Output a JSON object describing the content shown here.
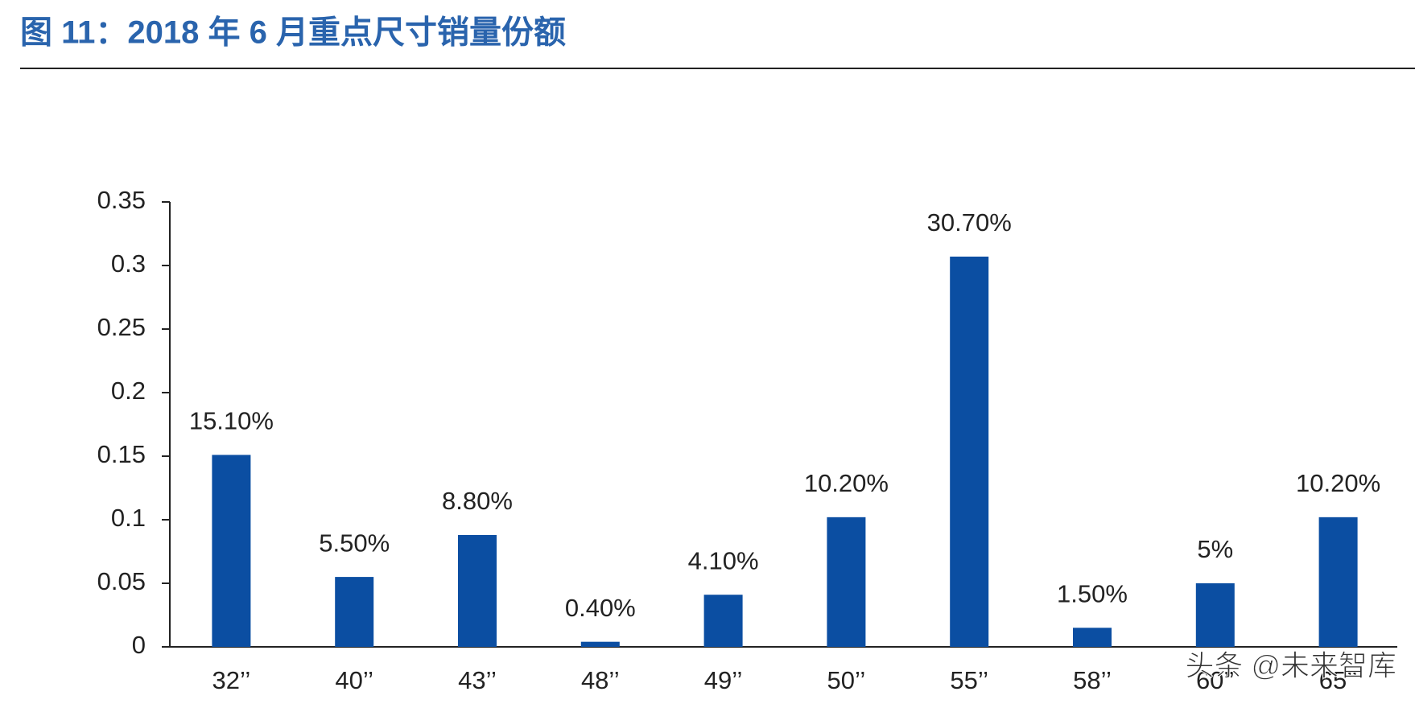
{
  "chart_data": {
    "type": "bar",
    "title": "图 11：2018 年 6 月重点尺寸销量份额",
    "categories": [
      "32’’",
      "40’’",
      "43’’",
      "48’’",
      "49’’",
      "50’’",
      "55’’",
      "58’’",
      "60’’",
      "65’’"
    ],
    "values": [
      0.151,
      0.055,
      0.088,
      0.004,
      0.041,
      0.102,
      0.307,
      0.015,
      0.05,
      0.102
    ],
    "value_labels": [
      "15.10%",
      "5.50%",
      "8.80%",
      "0.40%",
      "4.10%",
      "10.20%",
      "30.70%",
      "1.50%",
      "5%",
      "10.20%"
    ],
    "color": "#0b4ea2",
    "ylim": [
      0,
      0.35
    ],
    "yticks": [
      0,
      0.05,
      0.1,
      0.15,
      0.2,
      0.25,
      0.3,
      0.35
    ],
    "grid": false
  },
  "watermark": "头条 @未来智库"
}
